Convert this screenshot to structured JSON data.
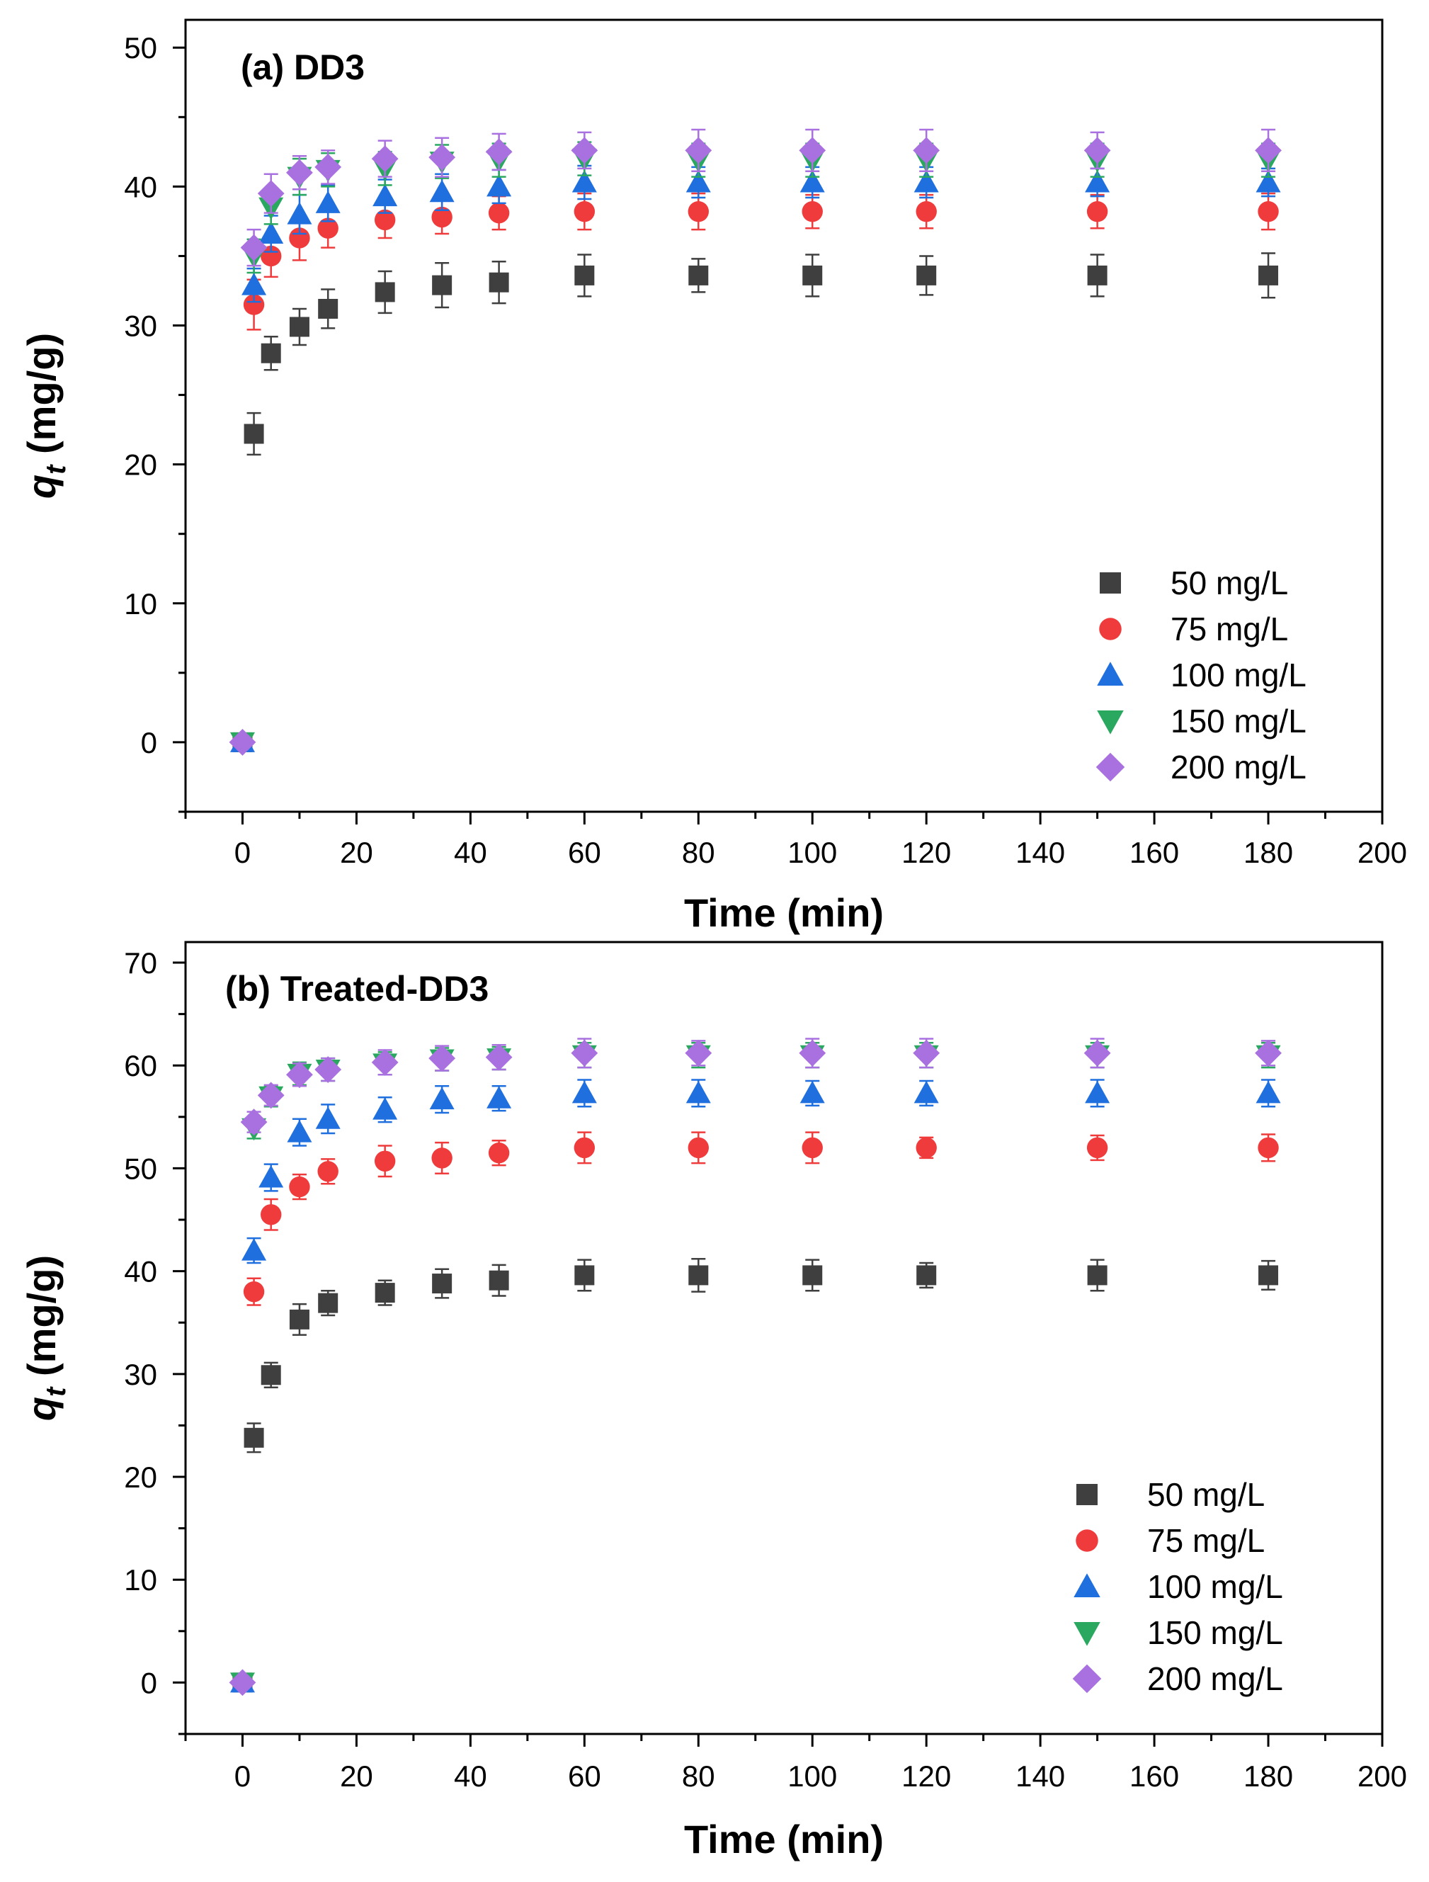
{
  "chart_data": [
    {
      "type": "scatter",
      "title": "(a) DD3",
      "xlabel": "Time (min)",
      "ylabel": {
        "main": "q",
        "sub": "t",
        "rest": " (mg/g)"
      },
      "xlim": [
        -10,
        200
      ],
      "ylim": [
        -5,
        52
      ],
      "xticks": [
        0,
        20,
        40,
        60,
        80,
        100,
        120,
        140,
        160,
        180,
        200
      ],
      "yticks": [
        0,
        10,
        20,
        30,
        40,
        50
      ],
      "legend_position": "bottom-right",
      "x": [
        0,
        2,
        5,
        10,
        15,
        25,
        35,
        45,
        60,
        80,
        100,
        120,
        150,
        180
      ],
      "series": [
        {
          "name": "50 mg/L",
          "marker": "square",
          "color": "#3f3f3f",
          "values": [
            0,
            22.2,
            28.0,
            29.9,
            31.2,
            32.4,
            32.9,
            33.1,
            33.6,
            33.6,
            33.6,
            33.6,
            33.6,
            33.6
          ],
          "errors": [
            0,
            1.5,
            1.2,
            1.3,
            1.4,
            1.5,
            1.6,
            1.5,
            1.5,
            1.2,
            1.5,
            1.4,
            1.5,
            1.6
          ]
        },
        {
          "name": "75 mg/L",
          "marker": "circle",
          "color": "#ef3b3b",
          "values": [
            0,
            31.5,
            35.0,
            36.3,
            37.0,
            37.6,
            37.8,
            38.1,
            38.2,
            38.2,
            38.2,
            38.2,
            38.2,
            38.2
          ],
          "errors": [
            0,
            1.8,
            1.5,
            1.6,
            1.4,
            1.3,
            1.2,
            1.2,
            1.3,
            1.3,
            1.2,
            1.2,
            1.2,
            1.3
          ]
        },
        {
          "name": "100 mg/L",
          "marker": "triangle-up",
          "color": "#1f6fdf",
          "values": [
            0,
            32.9,
            36.6,
            38.0,
            38.8,
            39.3,
            39.6,
            40.0,
            40.3,
            40.3,
            40.3,
            40.3,
            40.3,
            40.3
          ],
          "errors": [
            0,
            1.2,
            1.3,
            1.4,
            1.3,
            1.2,
            1.3,
            1.2,
            1.2,
            1.1,
            1.1,
            1.1,
            1.0,
            1.0
          ]
        },
        {
          "name": "150 mg/L",
          "marker": "triangle-down",
          "color": "#2aa860",
          "values": [
            0,
            35.0,
            38.5,
            40.7,
            41.2,
            41.3,
            41.8,
            41.9,
            42.0,
            41.9,
            41.9,
            41.9,
            41.9,
            41.9
          ],
          "errors": [
            0,
            1.2,
            1.2,
            1.3,
            1.2,
            1.2,
            1.2,
            1.2,
            1.2,
            1.2,
            1.2,
            1.2,
            1.2,
            1.2
          ]
        },
        {
          "name": "200 mg/L",
          "marker": "diamond",
          "color": "#a970e0",
          "values": [
            0,
            35.6,
            39.5,
            41.0,
            41.4,
            42.0,
            42.1,
            42.5,
            42.6,
            42.6,
            42.6,
            42.6,
            42.6,
            42.6
          ],
          "errors": [
            0,
            1.3,
            1.4,
            1.2,
            1.2,
            1.3,
            1.4,
            1.3,
            1.3,
            1.5,
            1.5,
            1.5,
            1.3,
            1.5
          ]
        }
      ]
    },
    {
      "type": "scatter",
      "title": "(b) Treated-DD3",
      "xlabel": "Time (min)",
      "ylabel": {
        "main": "q",
        "sub": "t",
        "rest": " (mg/g)"
      },
      "xlim": [
        -10,
        200
      ],
      "ylim": [
        -5,
        72
      ],
      "xticks": [
        0,
        20,
        40,
        60,
        80,
        100,
        120,
        140,
        160,
        180,
        200
      ],
      "yticks": [
        0,
        10,
        20,
        30,
        40,
        50,
        60,
        70
      ],
      "legend_position": "bottom-right",
      "x": [
        0,
        2,
        5,
        10,
        15,
        25,
        35,
        45,
        60,
        80,
        100,
        120,
        150,
        180
      ],
      "series": [
        {
          "name": "50 mg/L",
          "marker": "square",
          "color": "#3f3f3f",
          "values": [
            0,
            23.8,
            29.9,
            35.3,
            36.9,
            37.9,
            38.8,
            39.1,
            39.6,
            39.6,
            39.6,
            39.6,
            39.6,
            39.6
          ],
          "errors": [
            0,
            1.4,
            1.2,
            1.5,
            1.2,
            1.2,
            1.4,
            1.5,
            1.5,
            1.6,
            1.5,
            1.2,
            1.5,
            1.4
          ]
        },
        {
          "name": "75 mg/L",
          "marker": "circle",
          "color": "#ef3b3b",
          "values": [
            0,
            38.0,
            45.5,
            48.2,
            49.7,
            50.7,
            51.0,
            51.5,
            52.0,
            52.0,
            52.0,
            52.0,
            52.0,
            52.0
          ],
          "errors": [
            0,
            1.3,
            1.5,
            1.2,
            1.2,
            1.5,
            1.5,
            1.2,
            1.5,
            1.5,
            1.5,
            1.0,
            1.2,
            1.3
          ]
        },
        {
          "name": "100 mg/L",
          "marker": "triangle-up",
          "color": "#1f6fdf",
          "values": [
            0,
            42.0,
            49.1,
            53.5,
            54.8,
            55.7,
            56.7,
            56.8,
            57.3,
            57.3,
            57.3,
            57.3,
            57.3,
            57.3
          ],
          "errors": [
            0,
            1.2,
            1.3,
            1.3,
            1.4,
            1.2,
            1.3,
            1.2,
            1.3,
            1.3,
            1.2,
            1.2,
            1.3,
            1.3
          ]
        },
        {
          "name": "150 mg/L",
          "marker": "triangle-down",
          "color": "#2aa860",
          "values": [
            0,
            53.9,
            57.0,
            59.2,
            59.6,
            60.2,
            60.6,
            60.7,
            61.0,
            61.0,
            61.0,
            61.0,
            61.0,
            61.0
          ],
          "errors": [
            0,
            1.0,
            1.0,
            1.1,
            1.1,
            1.1,
            1.1,
            1.1,
            1.2,
            1.2,
            1.2,
            1.2,
            1.2,
            1.2
          ]
        },
        {
          "name": "200 mg/L",
          "marker": "diamond",
          "color": "#a970e0",
          "values": [
            0,
            54.5,
            57.1,
            59.1,
            59.6,
            60.3,
            60.7,
            60.8,
            61.2,
            61.2,
            61.2,
            61.2,
            61.2,
            61.2
          ],
          "errors": [
            0,
            1.0,
            1.0,
            1.1,
            1.1,
            1.2,
            1.2,
            1.2,
            1.4,
            1.2,
            1.4,
            1.4,
            1.4,
            1.2
          ]
        }
      ]
    }
  ]
}
